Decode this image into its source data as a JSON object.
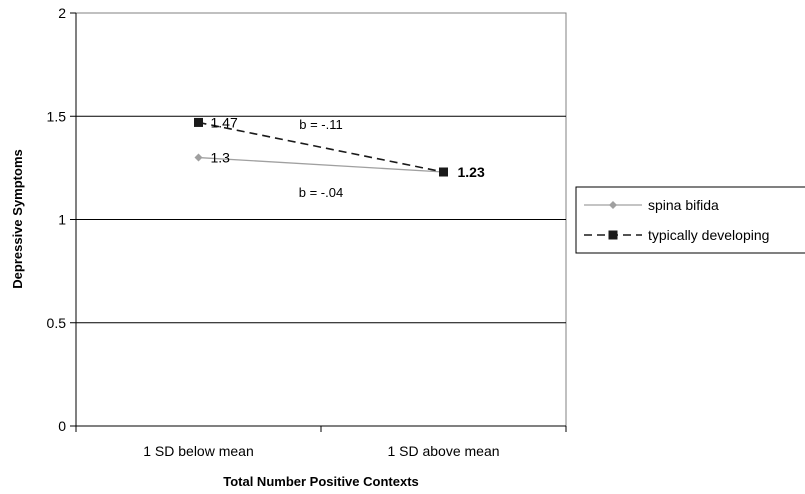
{
  "chart_data": {
    "type": "line",
    "categories": [
      "1 SD below mean",
      "1 SD above mean"
    ],
    "xlabel": "Total Number Positive Contexts",
    "ylabel": "Depressive Symptoms",
    "ylim": [
      0,
      2
    ],
    "yticks": [
      "0",
      "0.5",
      "1",
      "1.5",
      "2"
    ],
    "grid": true,
    "legend_position": "right",
    "series": [
      {
        "name": "spina bifida",
        "values": [
          1.3,
          1.23
        ],
        "labels": [
          "1.3",
          ""
        ],
        "color": "#a0a0a0",
        "marker": "diamond",
        "line": "solid",
        "slope_label": "b = -.04"
      },
      {
        "name": "typically developing",
        "values": [
          1.47,
          1.23
        ],
        "labels": [
          "1.47",
          "1.23"
        ],
        "color": "#1a1a1a",
        "marker": "square",
        "line": "dashed",
        "slope_label": "b = -.11"
      }
    ]
  }
}
